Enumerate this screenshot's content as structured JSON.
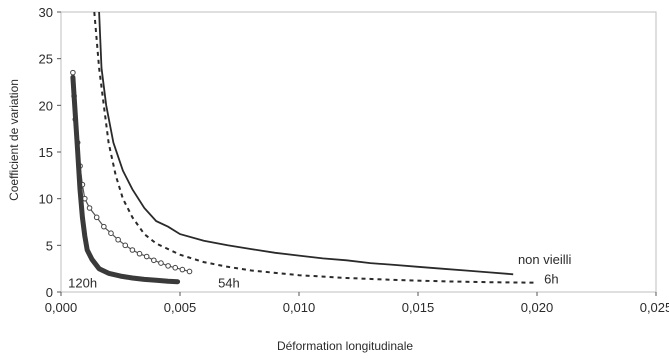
{
  "chart_data": {
    "type": "line",
    "title": "",
    "xlabel": "Déformation longitudinale",
    "ylabel": "Coefficient de variation",
    "xlim": [
      0,
      0.025
    ],
    "ylim": [
      0,
      30
    ],
    "grid": false,
    "x_ticks": [
      "0,000",
      "0,005",
      "0,010",
      "0,015",
      "0,020",
      "0,025"
    ],
    "y_ticks": [
      "0",
      "5",
      "10",
      "15",
      "20",
      "25",
      "30"
    ],
    "series": [
      {
        "name": "non vieilli",
        "style": "solid",
        "points": [
          [
            0.0016,
            30
          ],
          [
            0.0017,
            24
          ],
          [
            0.0019,
            20
          ],
          [
            0.0022,
            16
          ],
          [
            0.0026,
            13
          ],
          [
            0.003,
            11
          ],
          [
            0.0035,
            9
          ],
          [
            0.004,
            7.6
          ],
          [
            0.0045,
            7
          ],
          [
            0.005,
            6.2
          ],
          [
            0.006,
            5.5
          ],
          [
            0.007,
            5
          ],
          [
            0.008,
            4.6
          ],
          [
            0.009,
            4.2
          ],
          [
            0.01,
            3.9
          ],
          [
            0.011,
            3.6
          ],
          [
            0.012,
            3.4
          ],
          [
            0.013,
            3.1
          ],
          [
            0.014,
            2.9
          ],
          [
            0.015,
            2.7
          ],
          [
            0.016,
            2.5
          ],
          [
            0.017,
            2.3
          ],
          [
            0.018,
            2.1
          ],
          [
            0.019,
            1.9
          ]
        ]
      },
      {
        "name": "6h",
        "style": "dashed",
        "points": [
          [
            0.0014,
            30
          ],
          [
            0.0016,
            24
          ],
          [
            0.0018,
            20
          ],
          [
            0.002,
            16
          ],
          [
            0.0023,
            12.5
          ],
          [
            0.0026,
            10
          ],
          [
            0.003,
            8
          ],
          [
            0.0035,
            6.2
          ],
          [
            0.004,
            5.2
          ],
          [
            0.005,
            4
          ],
          [
            0.006,
            3.2
          ],
          [
            0.007,
            2.7
          ],
          [
            0.008,
            2.3
          ],
          [
            0.01,
            1.8
          ],
          [
            0.012,
            1.5
          ],
          [
            0.014,
            1.3
          ],
          [
            0.016,
            1.15
          ],
          [
            0.018,
            1.05
          ],
          [
            0.02,
            1
          ]
        ]
      },
      {
        "name": "54h",
        "style": "markers",
        "points": [
          [
            0.0005,
            23.5
          ],
          [
            0.00055,
            21
          ],
          [
            0.0006,
            18.5
          ],
          [
            0.0007,
            16
          ],
          [
            0.0008,
            13.5
          ],
          [
            0.0009,
            11.5
          ],
          [
            0.001,
            10
          ],
          [
            0.0012,
            9
          ],
          [
            0.0015,
            8
          ],
          [
            0.0018,
            7
          ],
          [
            0.0021,
            6.3
          ],
          [
            0.0024,
            5.6
          ],
          [
            0.0027,
            5
          ],
          [
            0.003,
            4.5
          ],
          [
            0.0033,
            4.1
          ],
          [
            0.0036,
            3.8
          ],
          [
            0.0039,
            3.4
          ],
          [
            0.0042,
            3.1
          ],
          [
            0.0045,
            2.8
          ],
          [
            0.0048,
            2.6
          ],
          [
            0.0051,
            2.4
          ],
          [
            0.0054,
            2.2
          ]
        ]
      },
      {
        "name": "120h",
        "style": "thick",
        "points": [
          [
            0.0005,
            23
          ],
          [
            0.0006,
            19
          ],
          [
            0.0007,
            15
          ],
          [
            0.0008,
            11
          ],
          [
            0.0009,
            8
          ],
          [
            0.001,
            6
          ],
          [
            0.0011,
            4.5
          ],
          [
            0.0013,
            3.5
          ],
          [
            0.0016,
            2.5
          ],
          [
            0.002,
            2
          ],
          [
            0.0025,
            1.7
          ],
          [
            0.003,
            1.5
          ],
          [
            0.0035,
            1.35
          ],
          [
            0.004,
            1.25
          ],
          [
            0.0045,
            1.15
          ],
          [
            0.0049,
            1.1
          ]
        ]
      }
    ],
    "annotations": [
      {
        "text": "non vieilli",
        "x": 0.0192,
        "y": 3.0
      },
      {
        "text": "6h",
        "x": 0.0203,
        "y": 0.9
      },
      {
        "text": "54h",
        "x": 0.0066,
        "y": 0.5
      },
      {
        "text": "120h",
        "x": 0.0003,
        "y": 0.5
      }
    ]
  }
}
